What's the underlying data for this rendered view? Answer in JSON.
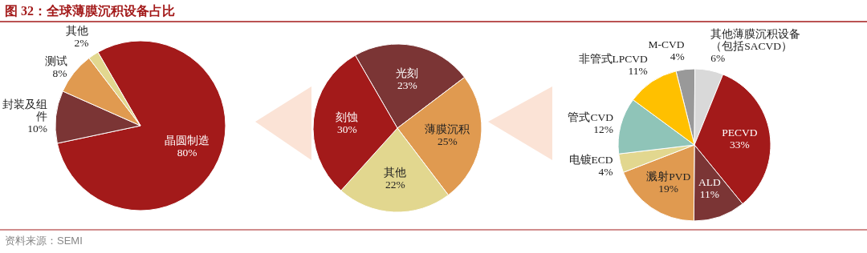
{
  "chart_data": [
    {
      "type": "pie",
      "title": "图 32：全球薄膜沉积设备占比",
      "categories": [
        "晶圆制造",
        "封装及组件",
        "测试",
        "其他"
      ],
      "values": [
        80,
        10,
        8,
        2
      ],
      "value_labels": [
        "80%",
        "10%",
        "8%",
        "2%"
      ],
      "colors": [
        "#a31a1a",
        "#7b3535",
        "#e09a50",
        "#e2d78f"
      ]
    },
    {
      "type": "pie",
      "categories": [
        "光刻",
        "薄膜沉积",
        "其他",
        "刻蚀"
      ],
      "values": [
        23,
        25,
        22,
        30
      ],
      "value_labels": [
        "23%",
        "25%",
        "22%",
        "30%"
      ],
      "colors": [
        "#7b3535",
        "#e09a50",
        "#e2d78f",
        "#a31a1a"
      ]
    },
    {
      "type": "pie",
      "categories": [
        "M-CVD",
        "其他薄膜沉积设备（包括SACVD）",
        "PECVD",
        "ALD",
        "溅射PVD",
        "电镀ECD",
        "管式CVD",
        "非管式LPCVD"
      ],
      "values": [
        4,
        6,
        33,
        11,
        19,
        4,
        12,
        11
      ],
      "value_labels": [
        "4%",
        "6%",
        "33%",
        "11%",
        "19%",
        "4%",
        "12%",
        "11%"
      ],
      "colors": [
        "#999999",
        "#d9d9d9",
        "#a31a1a",
        "#7b3535",
        "#e09a50",
        "#e2d78f",
        "#8fc4b8",
        "#ffc000"
      ],
      "annotations": [
        "资料来源：SEMI"
      ]
    }
  ]
}
